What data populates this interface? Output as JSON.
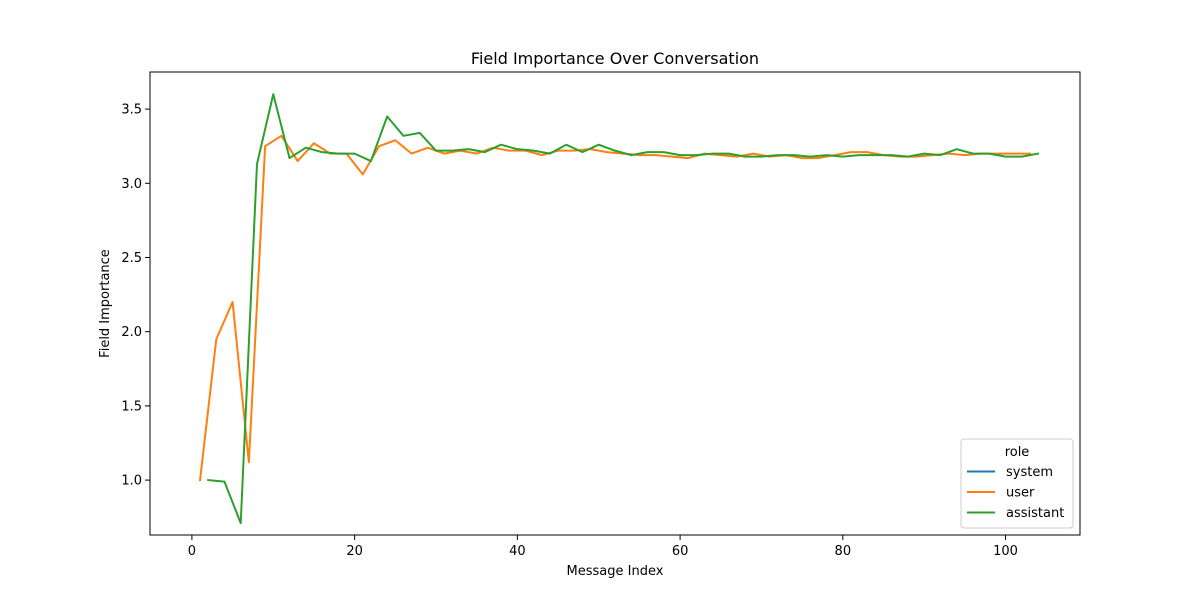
{
  "chart_data": {
    "type": "line",
    "title": "Field Importance Over Conversation",
    "xlabel": "Message Index",
    "ylabel": "Field Importance",
    "xlim": [
      -5.15,
      109.15
    ],
    "ylim": [
      0.63,
      3.75
    ],
    "xticks": [
      0,
      20,
      40,
      60,
      80,
      100
    ],
    "yticks": [
      1.0,
      1.5,
      2.0,
      2.5,
      3.0,
      3.5
    ],
    "grid": false,
    "legend": {
      "title": "role",
      "placement": "lower-right"
    },
    "series": [
      {
        "name": "system",
        "color": "#1f77b4",
        "points": []
      },
      {
        "name": "user",
        "color": "#ff7f0e",
        "points": [
          [
            1,
            1.0
          ],
          [
            3,
            1.95
          ],
          [
            5,
            2.2
          ],
          [
            7,
            1.12
          ],
          [
            9,
            3.25
          ],
          [
            11,
            3.32
          ],
          [
            13,
            3.15
          ],
          [
            15,
            3.27
          ],
          [
            17,
            3.2
          ],
          [
            19,
            3.2
          ],
          [
            21,
            3.06
          ],
          [
            23,
            3.25
          ],
          [
            25,
            3.29
          ],
          [
            27,
            3.2
          ],
          [
            29,
            3.24
          ],
          [
            31,
            3.2
          ],
          [
            33,
            3.22
          ],
          [
            35,
            3.2
          ],
          [
            37,
            3.24
          ],
          [
            39,
            3.22
          ],
          [
            41,
            3.22
          ],
          [
            43,
            3.19
          ],
          [
            45,
            3.22
          ],
          [
            47,
            3.22
          ],
          [
            49,
            3.23
          ],
          [
            51,
            3.21
          ],
          [
            53,
            3.2
          ],
          [
            55,
            3.19
          ],
          [
            57,
            3.19
          ],
          [
            59,
            3.18
          ],
          [
            61,
            3.17
          ],
          [
            63,
            3.2
          ],
          [
            65,
            3.19
          ],
          [
            67,
            3.18
          ],
          [
            69,
            3.2
          ],
          [
            71,
            3.18
          ],
          [
            73,
            3.19
          ],
          [
            75,
            3.17
          ],
          [
            77,
            3.17
          ],
          [
            79,
            3.19
          ],
          [
            81,
            3.21
          ],
          [
            83,
            3.21
          ],
          [
            85,
            3.19
          ],
          [
            87,
            3.18
          ],
          [
            89,
            3.18
          ],
          [
            91,
            3.19
          ],
          [
            93,
            3.2
          ],
          [
            95,
            3.19
          ],
          [
            97,
            3.2
          ],
          [
            99,
            3.2
          ],
          [
            101,
            3.2
          ],
          [
            103,
            3.2
          ]
        ]
      },
      {
        "name": "assistant",
        "color": "#2ca02c",
        "points": [
          [
            2,
            1.0
          ],
          [
            4,
            0.99
          ],
          [
            6,
            0.71
          ],
          [
            8,
            3.13
          ],
          [
            10,
            3.6
          ],
          [
            12,
            3.17
          ],
          [
            14,
            3.24
          ],
          [
            16,
            3.21
          ],
          [
            18,
            3.2
          ],
          [
            20,
            3.2
          ],
          [
            22,
            3.15
          ],
          [
            24,
            3.45
          ],
          [
            26,
            3.32
          ],
          [
            28,
            3.34
          ],
          [
            30,
            3.22
          ],
          [
            32,
            3.22
          ],
          [
            34,
            3.23
          ],
          [
            36,
            3.21
          ],
          [
            38,
            3.26
          ],
          [
            40,
            3.23
          ],
          [
            42,
            3.22
          ],
          [
            44,
            3.2
          ],
          [
            46,
            3.26
          ],
          [
            48,
            3.21
          ],
          [
            50,
            3.26
          ],
          [
            52,
            3.22
          ],
          [
            54,
            3.19
          ],
          [
            56,
            3.21
          ],
          [
            58,
            3.21
          ],
          [
            60,
            3.19
          ],
          [
            62,
            3.19
          ],
          [
            64,
            3.2
          ],
          [
            66,
            3.2
          ],
          [
            68,
            3.18
          ],
          [
            70,
            3.18
          ],
          [
            72,
            3.19
          ],
          [
            74,
            3.19
          ],
          [
            76,
            3.18
          ],
          [
            78,
            3.19
          ],
          [
            80,
            3.18
          ],
          [
            82,
            3.19
          ],
          [
            84,
            3.19
          ],
          [
            86,
            3.19
          ],
          [
            88,
            3.18
          ],
          [
            90,
            3.2
          ],
          [
            92,
            3.19
          ],
          [
            94,
            3.23
          ],
          [
            96,
            3.2
          ],
          [
            98,
            3.2
          ],
          [
            100,
            3.18
          ],
          [
            102,
            3.18
          ],
          [
            104,
            3.2
          ]
        ]
      }
    ]
  }
}
